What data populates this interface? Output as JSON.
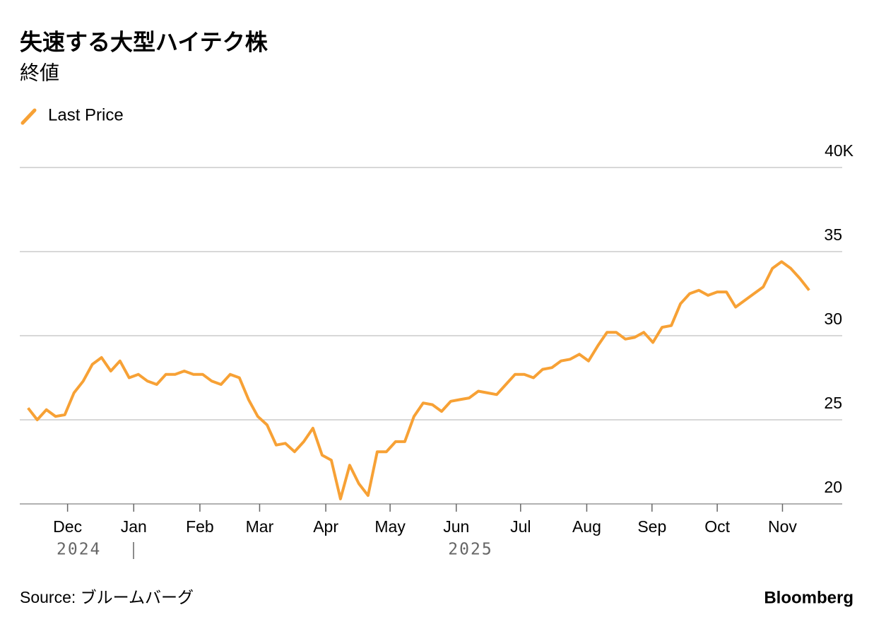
{
  "chart_data": {
    "type": "line",
    "title": "失速する大型ハイテク株",
    "subtitle": "終値",
    "source": "Source: ブルームバーグ",
    "brand": "Bloomberg",
    "years": [
      "2024",
      "2025"
    ],
    "series": [
      {
        "name": "Last Price",
        "color": "#f7a135",
        "values": [
          25.7,
          25.0,
          25.6,
          25.2,
          25.3,
          26.6,
          27.3,
          28.3,
          28.7,
          27.9,
          28.5,
          27.5,
          27.7,
          27.3,
          27.1,
          27.7,
          27.7,
          27.9,
          27.7,
          27.7,
          27.3,
          27.1,
          27.7,
          27.5,
          26.2,
          25.2,
          24.7,
          23.5,
          23.6,
          23.1,
          23.7,
          24.5,
          22.9,
          22.6,
          20.3,
          22.3,
          21.2,
          20.5,
          23.1,
          23.1,
          23.7,
          23.7,
          25.2,
          26.0,
          25.9,
          25.5,
          26.1,
          26.2,
          26.3,
          26.7,
          26.6,
          26.5,
          27.1,
          27.7,
          27.7,
          27.5,
          28.0,
          28.1,
          28.5,
          28.6,
          28.9,
          28.5,
          29.4,
          30.2,
          30.2,
          29.8,
          29.9,
          30.2,
          29.6,
          30.5,
          30.6,
          31.9,
          32.5,
          32.7,
          32.4,
          32.6,
          32.6,
          31.7,
          32.1,
          32.5,
          32.9,
          34.0,
          34.4,
          34.0,
          33.4,
          32.7
        ]
      }
    ],
    "xlim": [
      -0.9,
      88.6
    ],
    "xticks": [
      {
        "value": 4.3,
        "label": "Dec"
      },
      {
        "value": 11.5,
        "label": "Jan"
      },
      {
        "value": 18.7,
        "label": "Feb"
      },
      {
        "value": 25.2,
        "label": "Mar"
      },
      {
        "value": 32.4,
        "label": "Apr"
      },
      {
        "value": 39.4,
        "label": "May"
      },
      {
        "value": 46.6,
        "label": "Jun"
      },
      {
        "value": 53.6,
        "label": "Jul"
      },
      {
        "value": 60.8,
        "label": "Aug"
      },
      {
        "value": 67.9,
        "label": "Sep"
      },
      {
        "value": 75,
        "label": "Oct"
      },
      {
        "value": 82.1,
        "label": "Nov"
      }
    ],
    "ylim": [
      20,
      40
    ],
    "yticks": [
      20,
      25,
      30,
      35,
      {
        "value": 40,
        "label": "40K"
      }
    ],
    "grid": true
  }
}
